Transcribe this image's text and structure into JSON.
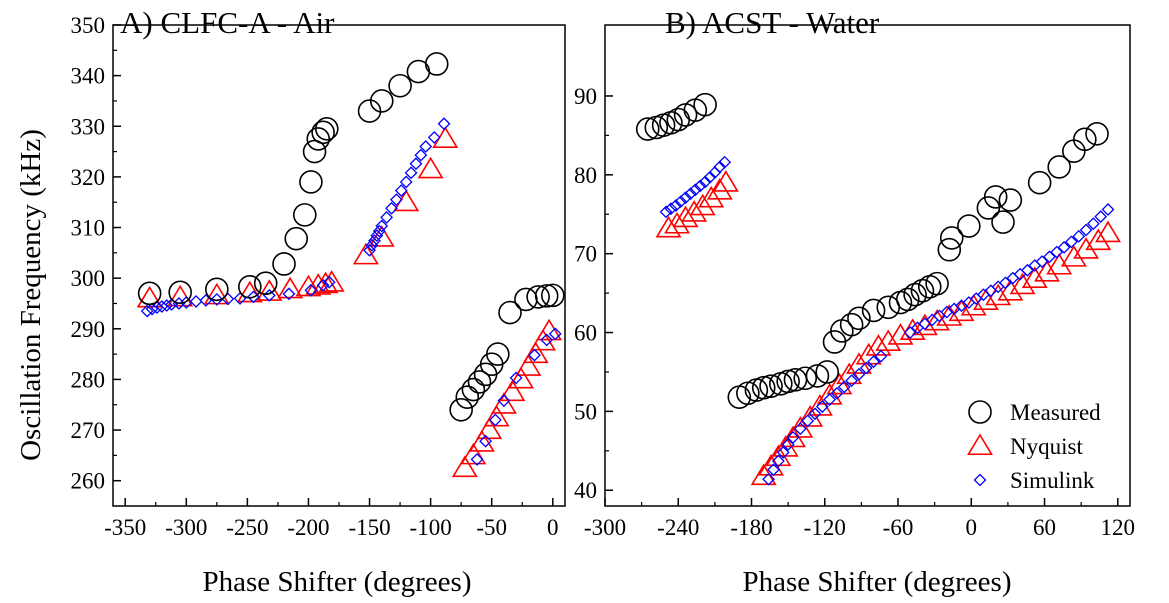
{
  "figure": {
    "ylabel": "Oscillation Frequency (kHz)"
  },
  "colors": {
    "measured": "#000000",
    "nyquist": "#ff0000",
    "simulink": "#0000ff"
  },
  "chart_data": [
    {
      "type": "scatter",
      "title": "A) CLFC-A - Air",
      "xlabel": "Phase Shifter (degrees)",
      "ylabel": "Oscillation Frequency (kHz)",
      "xlim": [
        -360,
        10
      ],
      "ylim": [
        255,
        350
      ],
      "xticks": [
        -350,
        -300,
        -250,
        -200,
        -150,
        -100,
        -50,
        0
      ],
      "xtick_labels": [
        "-350",
        "-300",
        "-250",
        "-200",
        "-150",
        "-100",
        "-50",
        "0"
      ],
      "yticks": [
        260,
        270,
        280,
        290,
        300,
        310,
        320,
        330,
        340,
        350
      ],
      "ytick_labels": [
        "260",
        "270",
        "280",
        "290",
        "300",
        "310",
        "320",
        "330",
        "340",
        "350"
      ],
      "grid": false,
      "legend": "none",
      "series": [
        {
          "name": "Measured",
          "marker": "circle",
          "points": [
            [
              -330,
              297.0
            ],
            [
              -305,
              297.2
            ],
            [
              -275,
              297.8
            ],
            [
              -248,
              298.3
            ],
            [
              -235,
              299.0
            ],
            [
              -220,
              302.8
            ],
            [
              -210,
              307.8
            ],
            [
              -203,
              312.5
            ],
            [
              -198,
              319.0
            ],
            [
              -195,
              325.0
            ],
            [
              -192,
              327.5
            ],
            [
              -188,
              328.8
            ],
            [
              -185,
              329.5
            ],
            [
              -150,
              333.0
            ],
            [
              -140,
              335.0
            ],
            [
              -125,
              338.0
            ],
            [
              -110,
              340.8
            ],
            [
              -95,
              342.3
            ],
            [
              -75,
              274.0
            ],
            [
              -70,
              276.5
            ],
            [
              -65,
              278.0
            ],
            [
              -60,
              279.5
            ],
            [
              -55,
              281.0
            ],
            [
              -50,
              283.0
            ],
            [
              -45,
              285.0
            ],
            [
              -35,
              293.2
            ],
            [
              -22,
              295.8
            ],
            [
              -12,
              296.3
            ],
            [
              -5,
              296.5
            ],
            [
              0,
              296.6
            ]
          ]
        },
        {
          "name": "Nyquist",
          "marker": "triangle",
          "points": [
            [
              -330,
              296.0
            ],
            [
              -305,
              296.2
            ],
            [
              -275,
              296.6
            ],
            [
              -248,
              297.0
            ],
            [
              -232,
              297.3
            ],
            [
              -215,
              297.8
            ],
            [
              -200,
              298.2
            ],
            [
              -192,
              298.5
            ],
            [
              -186,
              298.8
            ],
            [
              -181,
              299.1
            ],
            [
              -153,
              304.5
            ],
            [
              -140,
              308.0
            ],
            [
              -120,
              315.0
            ],
            [
              -100,
              321.5
            ],
            [
              -88,
              327.5
            ],
            [
              -72,
              262.5
            ],
            [
              -65,
              265.0
            ],
            [
              -58,
              267.5
            ],
            [
              -52,
              270.0
            ],
            [
              -46,
              272.5
            ],
            [
              -40,
              275.0
            ],
            [
              -33,
              277.5
            ],
            [
              -26,
              280.0
            ],
            [
              -20,
              282.5
            ],
            [
              -14,
              285.0
            ],
            [
              -8,
              287.5
            ],
            [
              -3,
              289.5
            ]
          ]
        },
        {
          "name": "Simulink",
          "marker": "diamond",
          "points": [
            [
              -332,
              293.5
            ],
            [
              -328,
              293.9
            ],
            [
              -324,
              294.2
            ],
            [
              -320,
              294.4
            ],
            [
              -316,
              294.6
            ],
            [
              -312,
              294.8
            ],
            [
              -306,
              295.0
            ],
            [
              -300,
              295.2
            ],
            [
              -292,
              295.4
            ],
            [
              -284,
              295.6
            ],
            [
              -275,
              295.8
            ],
            [
              -266,
              295.9
            ],
            [
              -256,
              296.0
            ],
            [
              -245,
              296.3
            ],
            [
              -232,
              296.6
            ],
            [
              -216,
              296.9
            ],
            [
              -198,
              297.6
            ],
            [
              -188,
              298.6
            ],
            [
              -183,
              299.2
            ],
            [
              -150,
              305.5
            ],
            [
              -148,
              306.5
            ],
            [
              -146,
              307.4
            ],
            [
              -144,
              308.4
            ],
            [
              -142,
              309.3
            ],
            [
              -140,
              310.3
            ],
            [
              -136,
              312.0
            ],
            [
              -132,
              313.8
            ],
            [
              -128,
              315.5
            ],
            [
              -124,
              317.3
            ],
            [
              -120,
              319.0
            ],
            [
              -116,
              320.8
            ],
            [
              -112,
              322.6
            ],
            [
              -108,
              324.3
            ],
            [
              -104,
              326.0
            ],
            [
              -97,
              327.8
            ],
            [
              -89,
              330.5
            ],
            [
              -62,
              264.2
            ],
            [
              -55,
              267.8
            ],
            [
              -47,
              272.0
            ],
            [
              -40,
              275.8
            ],
            [
              -30,
              280.3
            ],
            [
              -15,
              284.8
            ],
            [
              -5,
              287.8
            ],
            [
              2,
              289.0
            ]
          ]
        }
      ]
    },
    {
      "type": "scatter",
      "title": "B) ACST - Water",
      "xlabel": "Phase Shifter (degrees)",
      "ylabel": "",
      "xlim": [
        -300,
        130
      ],
      "ylim": [
        38,
        99
      ],
      "xticks": [
        -300,
        -240,
        -180,
        -120,
        -60,
        0,
        60,
        120
      ],
      "xtick_labels": [
        "-300",
        "-240",
        "-180",
        "-120",
        "-60",
        "0",
        "60",
        "120"
      ],
      "yticks": [
        40,
        50,
        60,
        70,
        80,
        90
      ],
      "ytick_labels": [
        "40",
        "50",
        "60",
        "70",
        "80",
        "90"
      ],
      "grid": false,
      "legend": "bottom-right",
      "series": [
        {
          "name": "Measured",
          "marker": "circle",
          "points": [
            [
              -265,
              85.8
            ],
            [
              -258,
              86.0
            ],
            [
              -252,
              86.3
            ],
            [
              -246,
              86.6
            ],
            [
              -240,
              87.0
            ],
            [
              -234,
              87.6
            ],
            [
              -226,
              88.2
            ],
            [
              -218,
              88.9
            ],
            [
              -190,
              51.8
            ],
            [
              -183,
              52.3
            ],
            [
              -176,
              52.7
            ],
            [
              -170,
              53.0
            ],
            [
              -164,
              53.2
            ],
            [
              -156,
              53.5
            ],
            [
              -150,
              53.8
            ],
            [
              -144,
              54.0
            ],
            [
              -136,
              54.2
            ],
            [
              -126,
              54.5
            ],
            [
              -118,
              55.0
            ],
            [
              -112,
              58.8
            ],
            [
              -106,
              60.2
            ],
            [
              -98,
              61.0
            ],
            [
              -92,
              61.8
            ],
            [
              -80,
              62.8
            ],
            [
              -68,
              63.2
            ],
            [
              -58,
              63.8
            ],
            [
              -52,
              64.2
            ],
            [
              -46,
              64.8
            ],
            [
              -40,
              65.3
            ],
            [
              -34,
              65.8
            ],
            [
              -28,
              66.2
            ],
            [
              -18,
              70.5
            ],
            [
              -16,
              72.0
            ],
            [
              -2,
              73.5
            ],
            [
              14,
              75.8
            ],
            [
              20,
              77.2
            ],
            [
              26,
              74.0
            ],
            [
              32,
              76.8
            ],
            [
              56,
              79.0
            ],
            [
              72,
              81.0
            ],
            [
              84,
              83.0
            ],
            [
              93,
              84.5
            ],
            [
              103,
              85.2
            ]
          ]
        },
        {
          "name": "Nyquist",
          "marker": "triangle",
          "points": [
            [
              -248,
              73.2
            ],
            [
              -241,
              73.7
            ],
            [
              -234,
              74.5
            ],
            [
              -227,
              75.2
            ],
            [
              -220,
              76.0
            ],
            [
              -213,
              77.0
            ],
            [
              -206,
              78.0
            ],
            [
              -201,
              79.0
            ],
            [
              -170,
              41.8
            ],
            [
              -164,
              43.0
            ],
            [
              -158,
              44.2
            ],
            [
              -152,
              45.4
            ],
            [
              -146,
              46.6
            ],
            [
              -140,
              47.8
            ],
            [
              -132,
              49.2
            ],
            [
              -124,
              50.6
            ],
            [
              -116,
              52.0
            ],
            [
              -108,
              53.3
            ],
            [
              -100,
              54.6
            ],
            [
              -92,
              55.9
            ],
            [
              -84,
              57.1
            ],
            [
              -76,
              58.2
            ],
            [
              -68,
              58.8
            ],
            [
              -58,
              59.6
            ],
            [
              -48,
              60.2
            ],
            [
              -38,
              60.8
            ],
            [
              -28,
              61.4
            ],
            [
              -18,
              62.0
            ],
            [
              -8,
              62.6
            ],
            [
              2,
              63.3
            ],
            [
              12,
              64.0
            ],
            [
              22,
              64.6
            ],
            [
              32,
              65.2
            ],
            [
              42,
              66.0
            ],
            [
              52,
              66.8
            ],
            [
              62,
              67.6
            ],
            [
              72,
              68.5
            ],
            [
              84,
              69.5
            ],
            [
              94,
              70.5
            ],
            [
              104,
              71.6
            ],
            [
              112,
              72.6
            ]
          ]
        },
        {
          "name": "Simulink",
          "marker": "diamond",
          "points": [
            [
              -250,
              75.3
            ],
            [
              -246,
              75.7
            ],
            [
              -242,
              76.1
            ],
            [
              -238,
              76.6
            ],
            [
              -234,
              77.1
            ],
            [
              -230,
              77.6
            ],
            [
              -226,
              78.1
            ],
            [
              -222,
              78.6
            ],
            [
              -218,
              79.1
            ],
            [
              -214,
              79.7
            ],
            [
              -210,
              80.3
            ],
            [
              -206,
              81.0
            ],
            [
              -202,
              81.6
            ],
            [
              -166,
              41.4
            ],
            [
              -162,
              42.6
            ],
            [
              -158,
              43.7
            ],
            [
              -154,
              44.8
            ],
            [
              -150,
              45.8
            ],
            [
              -146,
              46.7
            ],
            [
              -140,
              47.8
            ],
            [
              -134,
              48.8
            ],
            [
              -128,
              49.7
            ],
            [
              -122,
              50.6
            ],
            [
              -116,
              51.5
            ],
            [
              -110,
              52.3
            ],
            [
              -104,
              53.1
            ],
            [
              -98,
              53.9
            ],
            [
              -92,
              54.7
            ],
            [
              -86,
              55.5
            ],
            [
              -80,
              56.3
            ],
            [
              -74,
              57.0
            ],
            [
              -50,
              60.0
            ],
            [
              -44,
              60.6
            ],
            [
              -38,
              61.1
            ],
            [
              -32,
              61.6
            ],
            [
              -26,
              62.1
            ],
            [
              -20,
              62.6
            ],
            [
              -14,
              63.0
            ],
            [
              -8,
              63.4
            ],
            [
              -2,
              63.8
            ],
            [
              4,
              64.3
            ],
            [
              10,
              64.8
            ],
            [
              16,
              65.3
            ],
            [
              22,
              65.8
            ],
            [
              28,
              66.3
            ],
            [
              34,
              66.9
            ],
            [
              40,
              67.4
            ],
            [
              46,
              67.9
            ],
            [
              52,
              68.5
            ],
            [
              58,
              69.0
            ],
            [
              64,
              69.6
            ],
            [
              70,
              70.2
            ],
            [
              76,
              70.8
            ],
            [
              82,
              71.5
            ],
            [
              88,
              72.2
            ],
            [
              94,
              73.0
            ],
            [
              100,
              73.8
            ],
            [
              106,
              74.7
            ],
            [
              112,
              75.6
            ]
          ]
        }
      ]
    }
  ]
}
